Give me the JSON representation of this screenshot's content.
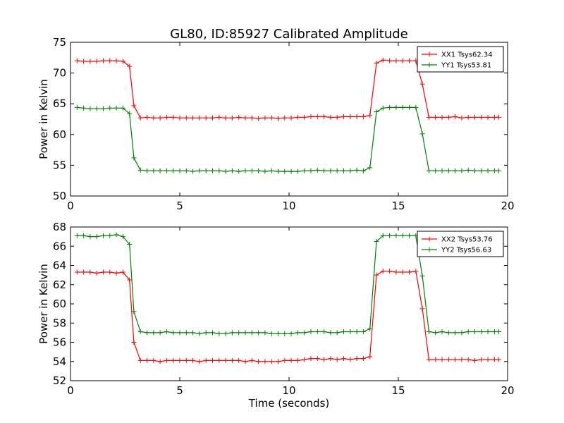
{
  "page": {
    "title": "GL80, ID:85927 Calibrated Amplitude",
    "xlabel": "Time (seconds)"
  },
  "chart_data": [
    {
      "type": "line",
      "title": "GL80, ID:85927 Calibrated Amplitude",
      "xlabel": "",
      "ylabel": "Power in Kelvin",
      "xlim": [
        0,
        20
      ],
      "ylim": [
        50,
        75
      ],
      "xticks": [
        0,
        5,
        10,
        15,
        20
      ],
      "yticks": [
        50,
        55,
        60,
        65,
        70,
        75
      ],
      "grid": false,
      "legend": "top-right",
      "x": [
        0.3,
        0.6,
        0.9,
        1.2,
        1.5,
        1.8,
        2.1,
        2.4,
        2.7,
        2.9,
        3.2,
        3.5,
        3.8,
        4.1,
        4.4,
        4.7,
        5.0,
        5.3,
        5.6,
        5.9,
        6.2,
        6.5,
        6.8,
        7.1,
        7.4,
        7.7,
        8.0,
        8.3,
        8.6,
        8.9,
        9.2,
        9.5,
        9.8,
        10.1,
        10.4,
        10.7,
        11.0,
        11.3,
        11.6,
        11.9,
        12.2,
        12.5,
        12.8,
        13.1,
        13.4,
        13.7,
        14.0,
        14.3,
        14.6,
        14.9,
        15.2,
        15.5,
        15.8,
        16.1,
        16.4,
        16.7,
        17.0,
        17.3,
        17.6,
        17.9,
        18.2,
        18.5,
        18.8,
        19.1,
        19.4,
        19.6
      ],
      "series": [
        {
          "name": "XX1 Tsys62.34",
          "color": "#ff0000",
          "values": [
            72.0,
            71.9,
            71.9,
            71.9,
            72.0,
            72.0,
            72.0,
            71.9,
            71.1,
            64.7,
            62.7,
            62.8,
            62.7,
            62.7,
            62.8,
            62.8,
            62.7,
            62.7,
            62.7,
            62.7,
            62.7,
            62.7,
            62.8,
            62.7,
            62.7,
            62.8,
            62.7,
            62.7,
            62.6,
            62.7,
            62.7,
            62.6,
            62.7,
            62.7,
            62.8,
            62.8,
            62.9,
            62.9,
            62.9,
            62.8,
            62.8,
            62.9,
            62.9,
            62.9,
            62.9,
            63.1,
            71.6,
            72.1,
            72.0,
            72.0,
            72.0,
            72.0,
            72.0,
            68.2,
            62.8,
            62.8,
            62.8,
            62.8,
            62.9,
            62.7,
            62.8,
            62.8,
            62.8,
            62.8,
            62.8,
            62.8
          ]
        },
        {
          "name": "YY1 Tsys53.81",
          "color": "#008000",
          "values": [
            64.4,
            64.3,
            64.2,
            64.2,
            64.2,
            64.3,
            64.3,
            64.3,
            63.4,
            56.2,
            54.2,
            54.1,
            54.1,
            54.1,
            54.1,
            54.1,
            54.1,
            54.1,
            54.0,
            54.1,
            54.1,
            54.1,
            54.1,
            54.0,
            54.1,
            54.0,
            54.1,
            54.1,
            54.1,
            54.0,
            54.1,
            54.0,
            54.0,
            54.0,
            54.0,
            54.1,
            54.1,
            54.2,
            54.1,
            54.1,
            54.1,
            54.1,
            54.1,
            54.2,
            54.1,
            54.6,
            63.7,
            64.3,
            64.4,
            64.4,
            64.4,
            64.4,
            64.4,
            60.1,
            54.1,
            54.1,
            54.1,
            54.1,
            54.1,
            54.1,
            54.2,
            54.1,
            54.1,
            54.1,
            54.1,
            54.1
          ]
        }
      ]
    },
    {
      "type": "line",
      "title": "",
      "xlabel": "Time (seconds)",
      "ylabel": "Power in Kelvin",
      "xlim": [
        0,
        20
      ],
      "ylim": [
        52,
        68
      ],
      "xticks": [
        0,
        5,
        10,
        15,
        20
      ],
      "yticks": [
        52,
        54,
        56,
        58,
        60,
        62,
        64,
        66,
        68
      ],
      "grid": false,
      "legend": "top-right",
      "x": [
        0.3,
        0.6,
        0.9,
        1.2,
        1.5,
        1.8,
        2.1,
        2.4,
        2.7,
        2.9,
        3.2,
        3.5,
        3.8,
        4.1,
        4.4,
        4.7,
        5.0,
        5.3,
        5.6,
        5.9,
        6.2,
        6.5,
        6.8,
        7.1,
        7.4,
        7.7,
        8.0,
        8.3,
        8.6,
        8.9,
        9.2,
        9.5,
        9.8,
        10.1,
        10.4,
        10.7,
        11.0,
        11.3,
        11.6,
        11.9,
        12.2,
        12.5,
        12.8,
        13.1,
        13.4,
        13.7,
        14.0,
        14.3,
        14.6,
        14.9,
        15.2,
        15.5,
        15.8,
        16.1,
        16.4,
        16.7,
        17.0,
        17.3,
        17.6,
        17.9,
        18.2,
        18.5,
        18.8,
        19.1,
        19.4,
        19.6
      ],
      "series": [
        {
          "name": "XX2 Tsys53.76",
          "color": "#ff0000",
          "values": [
            63.3,
            63.3,
            63.3,
            63.2,
            63.3,
            63.3,
            63.2,
            63.3,
            62.5,
            56.0,
            54.1,
            54.1,
            54.1,
            54.0,
            54.1,
            54.1,
            54.1,
            54.1,
            54.1,
            54.0,
            54.1,
            54.1,
            54.1,
            54.1,
            54.1,
            54.1,
            54.0,
            54.1,
            54.0,
            54.0,
            54.0,
            54.0,
            54.1,
            54.1,
            54.1,
            54.2,
            54.3,
            54.3,
            54.2,
            54.3,
            54.2,
            54.3,
            54.2,
            54.3,
            54.3,
            54.5,
            63.0,
            63.4,
            63.4,
            63.3,
            63.3,
            63.3,
            63.4,
            59.5,
            54.2,
            54.2,
            54.2,
            54.2,
            54.2,
            54.2,
            54.2,
            54.1,
            54.2,
            54.2,
            54.2,
            54.2
          ]
        },
        {
          "name": "YY2 Tsys56.63",
          "color": "#008000",
          "values": [
            67.1,
            67.1,
            67.0,
            67.0,
            67.1,
            67.1,
            67.2,
            67.0,
            66.2,
            59.2,
            57.1,
            57.0,
            57.0,
            57.0,
            57.1,
            57.0,
            57.0,
            57.0,
            57.0,
            56.9,
            57.0,
            57.0,
            56.9,
            56.9,
            57.0,
            57.0,
            57.0,
            57.0,
            57.0,
            57.0,
            56.9,
            56.9,
            56.9,
            56.9,
            57.0,
            57.0,
            57.1,
            57.1,
            57.1,
            57.0,
            57.0,
            57.1,
            57.1,
            57.1,
            57.1,
            57.4,
            66.5,
            67.1,
            67.1,
            67.1,
            67.1,
            67.1,
            67.1,
            62.9,
            57.1,
            57.0,
            57.1,
            57.0,
            57.0,
            57.0,
            57.1,
            57.1,
            57.1,
            57.1,
            57.1,
            57.1
          ]
        }
      ]
    }
  ]
}
